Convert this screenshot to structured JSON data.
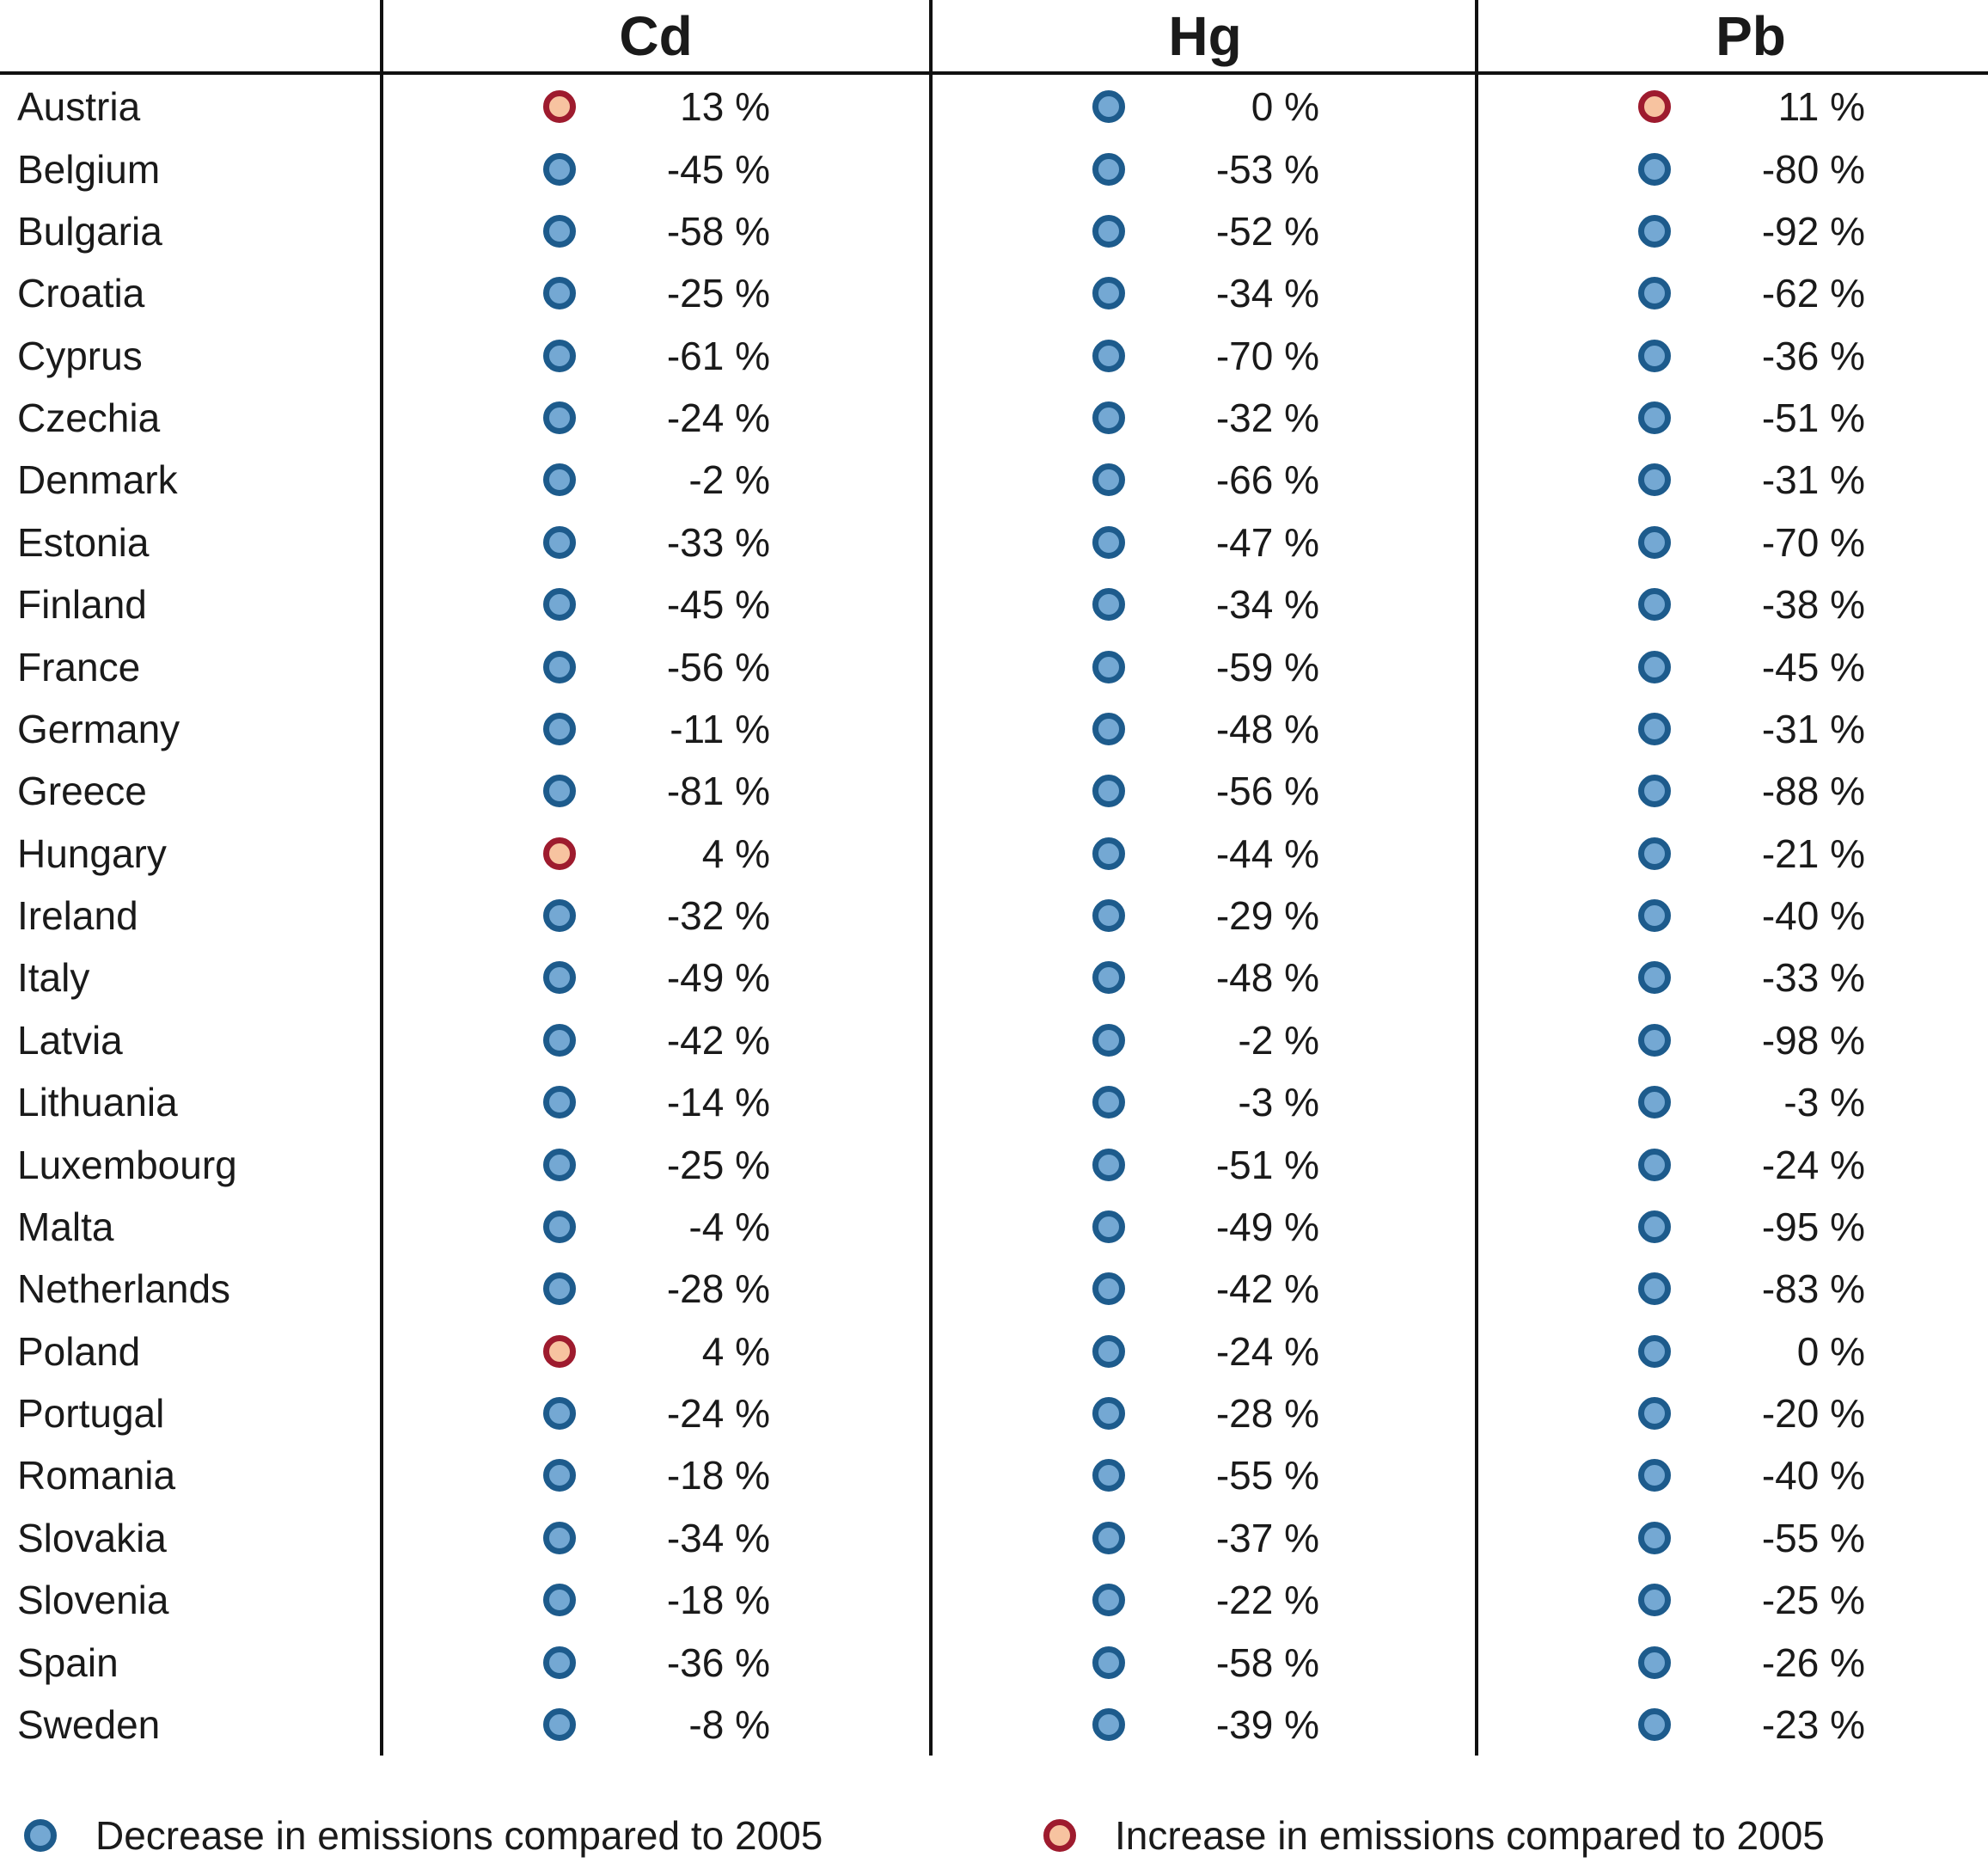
{
  "colors": {
    "decrease_fill": "#74a8d3",
    "decrease_border": "#1d5b8c",
    "increase_fill": "#f7c3a0",
    "increase_border": "#9e1b2e",
    "line": "#111111",
    "text": "#1a1a1a"
  },
  "legend": {
    "decrease_label": "Decrease in emissions compared to 2005",
    "increase_label": "Increase in emissions compared to 2005"
  },
  "chart_data": {
    "type": "table",
    "value_suffix": " %",
    "unit": "%",
    "legend_position": "bottom",
    "categories": [
      "Austria",
      "Belgium",
      "Bulgaria",
      "Croatia",
      "Cyprus",
      "Czechia",
      "Denmark",
      "Estonia",
      "Finland",
      "France",
      "Germany",
      "Greece",
      "Hungary",
      "Ireland",
      "Italy",
      "Latvia",
      "Lithuania",
      "Luxembourg",
      "Malta",
      "Netherlands",
      "Poland",
      "Portugal",
      "Romania",
      "Slovakia",
      "Slovenia",
      "Spain",
      "Sweden"
    ],
    "series": [
      {
        "name": "Cd",
        "values": [
          13,
          -45,
          -58,
          -25,
          -61,
          -24,
          -2,
          -33,
          -45,
          -56,
          -11,
          -81,
          4,
          -32,
          -49,
          -42,
          -14,
          -25,
          -4,
          -28,
          4,
          -24,
          -18,
          -34,
          -18,
          -36,
          -8
        ]
      },
      {
        "name": "Hg",
        "values": [
          0,
          -53,
          -52,
          -34,
          -70,
          -32,
          -66,
          -47,
          -34,
          -59,
          -48,
          -56,
          -44,
          -29,
          -48,
          -2,
          -3,
          -51,
          -49,
          -42,
          -24,
          -28,
          -55,
          -37,
          -22,
          -58,
          -39
        ]
      },
      {
        "name": "Pb",
        "values": [
          11,
          -80,
          -92,
          -62,
          -36,
          -51,
          -31,
          -70,
          -38,
          -45,
          -31,
          -88,
          -21,
          -40,
          -33,
          -98,
          -3,
          -24,
          -95,
          -83,
          0,
          -20,
          -40,
          -55,
          -25,
          -26,
          -23
        ]
      }
    ],
    "color_rule": "values greater than 0 use increase color, otherwise decrease color"
  }
}
